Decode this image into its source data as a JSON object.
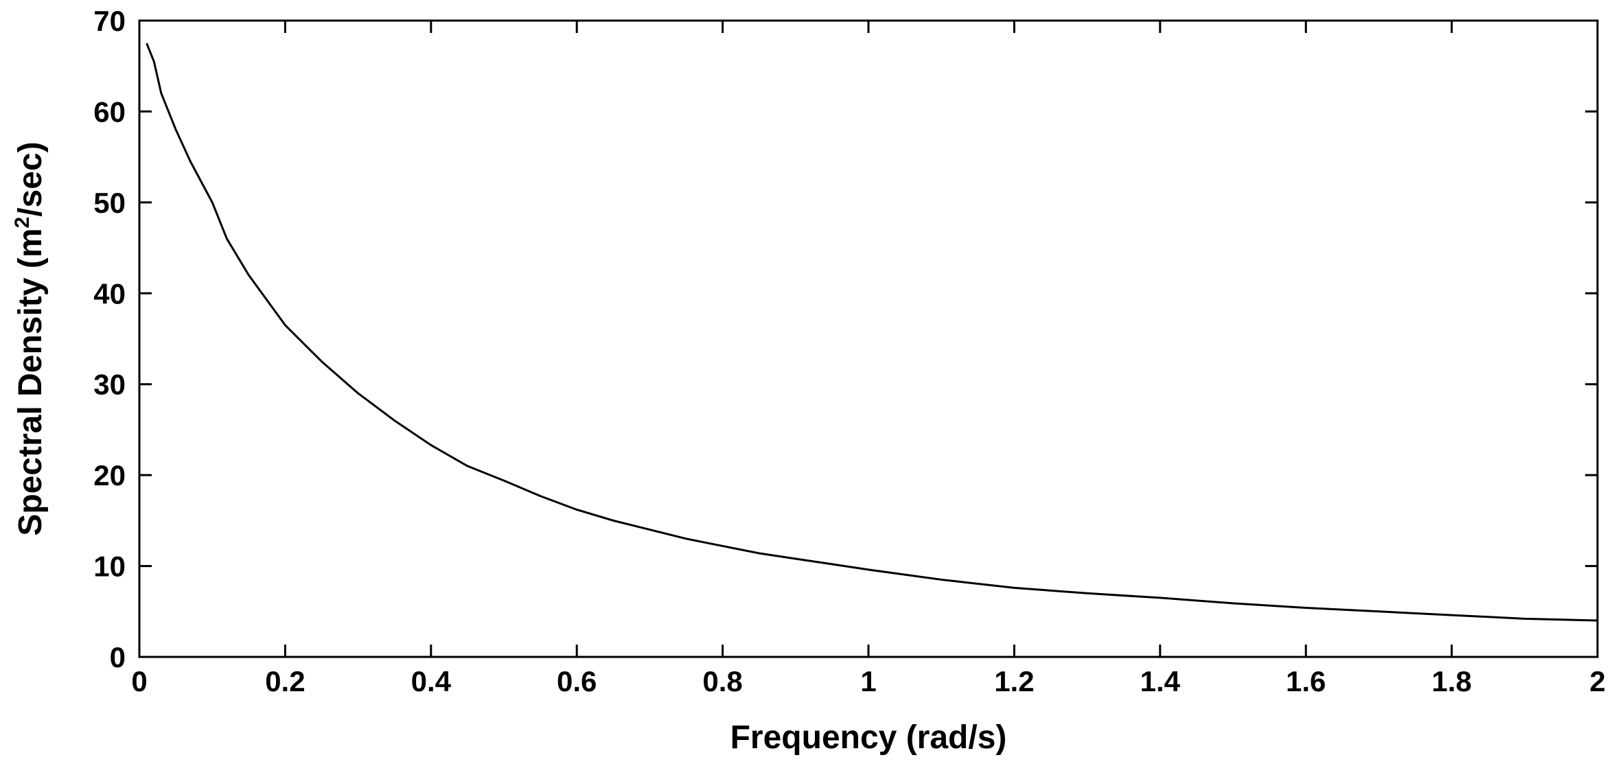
{
  "chart_data": {
    "type": "line",
    "title": "",
    "xlabel": "Frequency (rad/s)",
    "ylabel": {
      "prefix": "Spectral Density (m",
      "superscript": "2",
      "suffix": "/sec)"
    },
    "xlim": [
      0,
      2
    ],
    "ylim": [
      0,
      70
    ],
    "x_ticks": [
      0,
      0.2,
      0.4,
      0.6,
      0.8,
      1,
      1.2,
      1.4,
      1.6,
      1.8,
      2
    ],
    "x_tick_labels": [
      "0",
      "0.2",
      "0.4",
      "0.6",
      "0.8",
      "1",
      "1.2",
      "1.4",
      "1.6",
      "1.8",
      "2"
    ],
    "y_ticks": [
      0,
      10,
      20,
      30,
      40,
      50,
      60,
      70
    ],
    "y_tick_labels": [
      "0",
      "10",
      "20",
      "30",
      "40",
      "50",
      "60",
      "70"
    ],
    "grid": false,
    "legend": "none",
    "line_color": "#000000",
    "series": [
      {
        "x": [
          0.01,
          0.02,
          0.03,
          0.05,
          0.07,
          0.1,
          0.12,
          0.15,
          0.2,
          0.25,
          0.3,
          0.35,
          0.4,
          0.45,
          0.5,
          0.55,
          0.6,
          0.65,
          0.7,
          0.75,
          0.8,
          0.85,
          0.9,
          0.95,
          1.0,
          1.1,
          1.2,
          1.3,
          1.4,
          1.5,
          1.6,
          1.7,
          1.8,
          1.9,
          2.0
        ],
        "values": [
          67.5,
          65.5,
          62,
          58,
          54.5,
          50,
          46,
          42,
          36.5,
          32.5,
          29,
          26,
          23.3,
          21,
          19.4,
          17.7,
          16.2,
          15,
          14,
          13,
          12.2,
          11.4,
          10.8,
          10.2,
          9.6,
          8.5,
          7.6,
          7,
          6.5,
          5.9,
          5.4,
          5,
          4.6,
          4.2,
          4
        ]
      }
    ]
  }
}
